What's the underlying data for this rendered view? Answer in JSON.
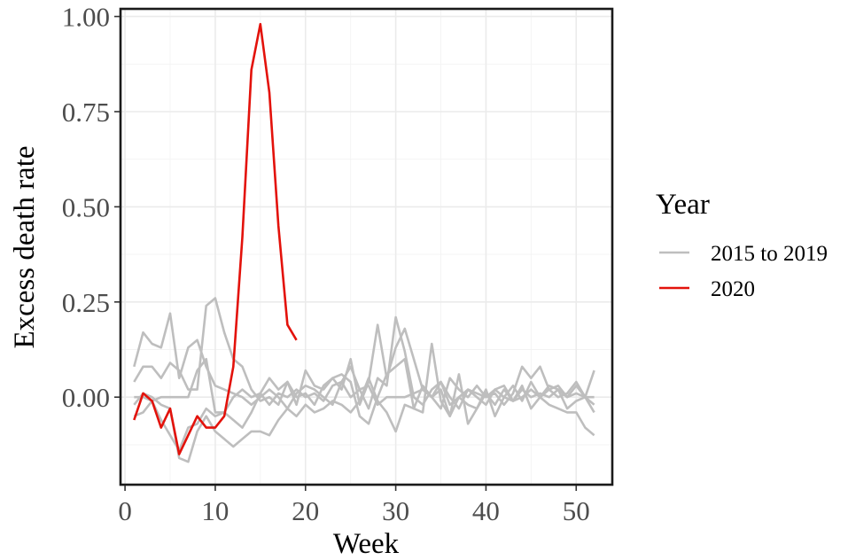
{
  "chart_data": {
    "type": "line",
    "title": "",
    "xlabel": "Week",
    "ylabel": "Excess death rate",
    "xlim": [
      -0.5,
      54
    ],
    "ylim": [
      -0.23,
      1.02
    ],
    "xticks": [
      0,
      10,
      20,
      30,
      40,
      50
    ],
    "yticks": [
      0.0,
      0.25,
      0.5,
      0.75,
      1.0
    ],
    "xtick_labels": [
      "0",
      "10",
      "20",
      "30",
      "40",
      "50"
    ],
    "ytick_labels": [
      "0.00",
      "0.25",
      "0.50",
      "0.75",
      "1.00"
    ],
    "grid": true,
    "legend": {
      "title": "Year",
      "position": "right",
      "entries": [
        {
          "label": "2015 to 2019",
          "color": "#bebebe"
        },
        {
          "label": "2020",
          "color": "#e3120b"
        }
      ]
    },
    "series": [
      {
        "group": "2015 to 2019",
        "color": "#bebebe",
        "x": [
          1,
          2,
          3,
          4,
          5,
          6,
          7,
          8,
          9,
          10,
          11,
          12,
          13,
          14,
          15,
          16,
          17,
          18,
          19,
          20,
          21,
          22,
          23,
          24,
          25,
          26,
          27,
          28,
          29,
          30,
          31,
          32,
          33,
          34,
          35,
          36,
          37,
          38,
          39,
          40,
          41,
          42,
          43,
          44,
          45,
          46,
          47,
          48,
          49,
          50,
          51,
          52
        ],
        "y": [
          0.08,
          0.17,
          0.14,
          0.13,
          0.22,
          0.05,
          0.13,
          0.15,
          0.08,
          0.03,
          0.02,
          0.01,
          0.0,
          -0.02,
          0.0,
          0.02,
          0.0,
          -0.03,
          0.01,
          0.03,
          0.02,
          0.0,
          -0.02,
          0.04,
          0.08,
          0.02,
          -0.03,
          0.05,
          0.03,
          0.21,
          0.12,
          0.0,
          -0.02,
          0.02,
          0.04,
          0.0,
          -0.03,
          0.02,
          0.0,
          -0.02,
          0.02,
          0.0,
          0.03,
          -0.01,
          0.04,
          0.0,
          0.02,
          0.0,
          0.01,
          0.04,
          0.0,
          -0.04
        ]
      },
      {
        "group": "2015 to 2019",
        "color": "#bebebe",
        "x": [
          1,
          2,
          3,
          4,
          5,
          6,
          7,
          8,
          9,
          10,
          11,
          12,
          13,
          14,
          15,
          16,
          17,
          18,
          19,
          20,
          21,
          22,
          23,
          24,
          25,
          26,
          27,
          28,
          29,
          30,
          31,
          32,
          33,
          34,
          35,
          36,
          37,
          38,
          39,
          40,
          41,
          42,
          43,
          44,
          45,
          46,
          47,
          48,
          49,
          50,
          51,
          52
        ],
        "y": [
          0.04,
          0.08,
          0.08,
          0.05,
          0.09,
          0.07,
          0.02,
          0.02,
          0.24,
          0.26,
          0.17,
          0.1,
          0.08,
          0.02,
          -0.01,
          0.0,
          -0.02,
          0.04,
          0.0,
          0.01,
          -0.02,
          0.03,
          0.05,
          0.02,
          0.1,
          -0.02,
          0.04,
          0.19,
          0.05,
          0.13,
          0.18,
          0.1,
          0.02,
          0.0,
          -0.03,
          0.05,
          0.02,
          0.0,
          0.03,
          0.0,
          0.01,
          -0.02,
          0.01,
          0.08,
          0.05,
          0.08,
          0.02,
          0.03,
          0.0,
          0.03,
          0.0,
          0.07
        ]
      },
      {
        "group": "2015 to 2019",
        "color": "#bebebe",
        "x": [
          1,
          2,
          3,
          4,
          5,
          6,
          7,
          8,
          9,
          10,
          11,
          12,
          13,
          14,
          15,
          16,
          17,
          18,
          19,
          20,
          21,
          22,
          23,
          24,
          25,
          26,
          27,
          28,
          29,
          30,
          31,
          32,
          33,
          34,
          35,
          36,
          37,
          38,
          39,
          40,
          41,
          42,
          43,
          44,
          45,
          46,
          47,
          48,
          49,
          50,
          51,
          52
        ],
        "y": [
          -0.02,
          0.01,
          0.0,
          -0.02,
          -0.03,
          -0.16,
          -0.17,
          -0.09,
          -0.05,
          -0.09,
          -0.11,
          -0.13,
          -0.11,
          -0.09,
          -0.09,
          -0.1,
          -0.06,
          -0.03,
          -0.05,
          -0.02,
          -0.04,
          -0.03,
          -0.01,
          -0.02,
          -0.04,
          -0.01,
          0.05,
          -0.01,
          -0.04,
          -0.09,
          -0.02,
          -0.03,
          0.03,
          0.0,
          0.02,
          -0.05,
          0.0,
          -0.02,
          -0.03,
          0.01,
          -0.02,
          0.02,
          -0.01,
          0.0,
          0.02,
          0.0,
          -0.02,
          -0.03,
          -0.04,
          -0.04,
          -0.08,
          -0.1
        ]
      },
      {
        "group": "2015 to 2019",
        "color": "#bebebe",
        "x": [
          1,
          2,
          3,
          4,
          5,
          6,
          7,
          8,
          9,
          10,
          11,
          12,
          13,
          14,
          15,
          16,
          17,
          18,
          19,
          20,
          21,
          22,
          23,
          24,
          25,
          26,
          27,
          28,
          29,
          30,
          31,
          32,
          33,
          34,
          35,
          36,
          37,
          38,
          39,
          40,
          41,
          42,
          43,
          44,
          45,
          46,
          47,
          48,
          49,
          50,
          51,
          52
        ],
        "y": [
          -0.05,
          -0.04,
          -0.01,
          -0.06,
          -0.1,
          -0.14,
          -0.08,
          -0.07,
          -0.03,
          -0.05,
          -0.04,
          -0.06,
          -0.08,
          -0.04,
          0.01,
          0.05,
          0.02,
          0.04,
          -0.02,
          0.07,
          0.03,
          0.02,
          0.05,
          0.06,
          0.04,
          -0.05,
          -0.07,
          0.0,
          0.06,
          0.08,
          0.1,
          -0.03,
          -0.04,
          0.14,
          -0.01,
          -0.05,
          0.06,
          -0.07,
          -0.03,
          0.02,
          -0.05,
          0.0,
          -0.01,
          0.03,
          -0.03,
          0.0,
          0.03,
          0.02,
          -0.03,
          -0.01,
          0.0,
          -0.02
        ]
      },
      {
        "group": "2015 to 2019",
        "color": "#bebebe",
        "x": [
          1,
          2,
          3,
          4,
          5,
          6,
          7,
          8,
          9,
          10,
          11,
          12,
          13,
          14,
          15,
          16,
          17,
          18,
          19,
          20,
          21,
          22,
          23,
          24,
          25,
          26,
          27,
          28,
          29,
          30,
          31,
          32,
          33,
          34,
          35,
          36,
          37,
          38,
          39,
          40,
          41,
          42,
          43,
          44,
          45,
          46,
          47,
          48,
          49,
          50,
          51,
          52
        ],
        "y": [
          0.0,
          0.0,
          -0.01,
          0.0,
          0.0,
          0.0,
          0.0,
          0.07,
          0.1,
          -0.04,
          -0.04,
          0.0,
          0.02,
          0.0,
          0.01,
          -0.02,
          0.01,
          0.0,
          0.02,
          0.0,
          0.01,
          -0.01,
          0.03,
          0.04,
          0.0,
          0.02,
          0.03,
          -0.02,
          0.0,
          0.0,
          0.0,
          0.01,
          0.02,
          0.0,
          0.04,
          -0.02,
          0.0,
          0.02,
          0.01,
          0.0,
          0.02,
          0.03,
          -0.01,
          0.02,
          0.0,
          0.01,
          0.0,
          0.02,
          0.0,
          0.01,
          0.0,
          0.0
        ]
      },
      {
        "group": "2020",
        "color": "#e3120b",
        "x": [
          1,
          2,
          3,
          4,
          5,
          6,
          7,
          8,
          9,
          10,
          11,
          12,
          13,
          14,
          15,
          16,
          17,
          18,
          19
        ],
        "y": [
          -0.06,
          0.01,
          -0.01,
          -0.08,
          -0.03,
          -0.15,
          -0.1,
          -0.05,
          -0.08,
          -0.08,
          -0.05,
          0.08,
          0.42,
          0.86,
          0.98,
          0.8,
          0.45,
          0.19,
          0.15
        ]
      }
    ]
  }
}
